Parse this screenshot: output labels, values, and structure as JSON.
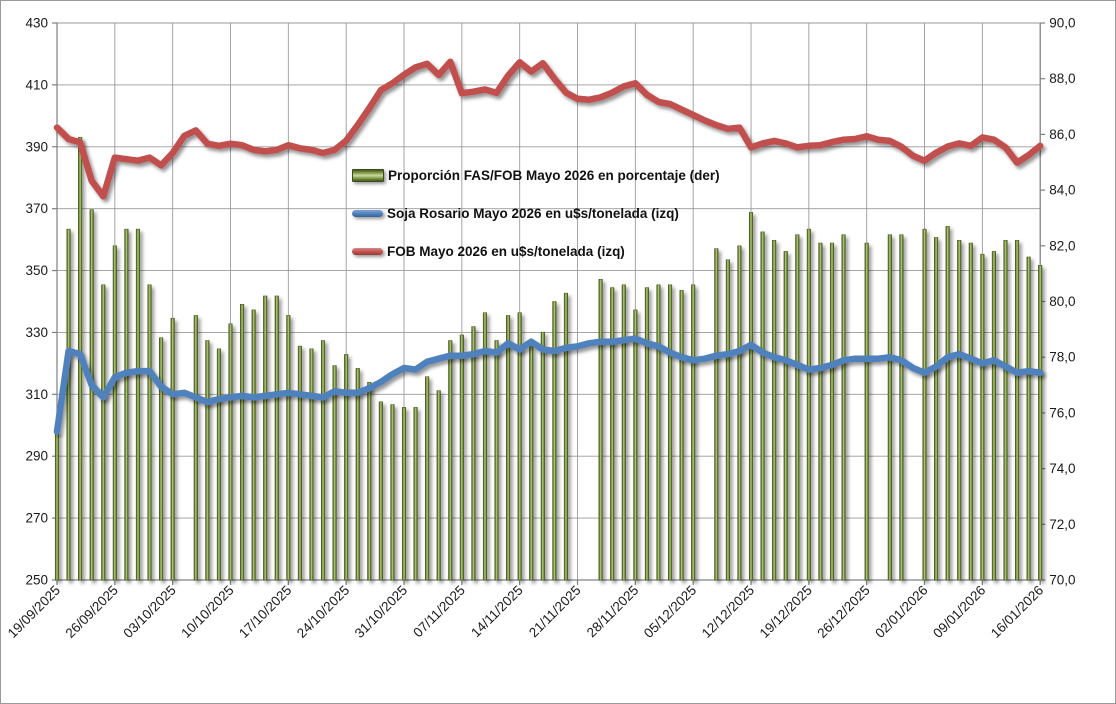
{
  "window": {
    "background": "#FFFFFF",
    "border_color": "#9A9A9A"
  },
  "chart_data": {
    "type": "combo",
    "title": "",
    "xlabel": "",
    "ylabel_left": "",
    "ylabel_right": "",
    "grid": true,
    "legend_position": "inside-upper-center",
    "categories": [
      "19/09/2025",
      "22/09/2025",
      "23/09/2025",
      "24/09/2025",
      "25/09/2025",
      "26/09/2025",
      "29/09/2025",
      "30/09/2025",
      "01/10/2025",
      "02/10/2025",
      "03/10/2025",
      "06/10/2025",
      "07/10/2025",
      "08/10/2025",
      "09/10/2025",
      "10/10/2025",
      "13/10/2025",
      "14/10/2025",
      "15/10/2025",
      "16/10/2025",
      "17/10/2025",
      "20/10/2025",
      "21/10/2025",
      "22/10/2025",
      "23/10/2025",
      "24/10/2025",
      "27/10/2025",
      "28/10/2025",
      "29/10/2025",
      "30/10/2025",
      "31/10/2025",
      "03/11/2025",
      "04/11/2025",
      "05/11/2025",
      "06/11/2025",
      "07/11/2025",
      "10/11/2025",
      "11/11/2025",
      "12/11/2025",
      "13/11/2025",
      "14/11/2025",
      "17/11/2025",
      "18/11/2025",
      "19/11/2025",
      "20/11/2025",
      "21/11/2025",
      "24/11/2025",
      "25/11/2025",
      "26/11/2025",
      "27/11/2025",
      "28/11/2025",
      "01/12/2025",
      "02/12/2025",
      "03/12/2025",
      "04/12/2025",
      "05/12/2025",
      "08/12/2025",
      "09/12/2025",
      "10/12/2025",
      "11/12/2025",
      "12/12/2025",
      "15/12/2025",
      "16/12/2025",
      "17/12/2025",
      "18/12/2025",
      "19/12/2025",
      "22/12/2025",
      "23/12/2025",
      "24/12/2025",
      "25/12/2025",
      "26/12/2025",
      "29/12/2025",
      "30/12/2025",
      "31/12/2025",
      "01/01/2026",
      "02/01/2026",
      "05/01/2026",
      "06/01/2026",
      "07/01/2026",
      "08/01/2026",
      "09/01/2026",
      "12/01/2026",
      "13/01/2026",
      "14/01/2026",
      "15/01/2026",
      "16/01/2026"
    ],
    "x_tick_labels": [
      "19/09/2025",
      "26/09/2025",
      "03/10/2025",
      "10/10/2025",
      "17/10/2025",
      "24/10/2025",
      "31/10/2025",
      "07/11/2025",
      "14/11/2025",
      "21/11/2025",
      "28/11/2025",
      "05/12/2025",
      "12/12/2025",
      "19/12/2025",
      "26/12/2025",
      "02/01/2026",
      "09/01/2026",
      "16/01/2026"
    ],
    "axes": {
      "left": {
        "min": 250,
        "max": 430,
        "step": 20,
        "tick_labels": [
          "250",
          "270",
          "290",
          "310",
          "330",
          "350",
          "370",
          "390",
          "410",
          "430"
        ]
      },
      "right": {
        "min": 70,
        "max": 90,
        "step": 2,
        "tick_labels": [
          "70,0",
          "72,0",
          "74,0",
          "76,0",
          "78,0",
          "80,0",
          "82,0",
          "84,0",
          "86,0",
          "88,0",
          "90,0"
        ]
      }
    },
    "series": [
      {
        "name": "Proporción FAS/FOB Mayo 2026 en porcentaje (der)",
        "type": "bar",
        "axis": "right",
        "color": "#77933C",
        "values": [
          75.3,
          82.6,
          85.9,
          83.3,
          80.6,
          82.0,
          82.6,
          82.6,
          80.6,
          78.7,
          79.4,
          null,
          79.5,
          78.6,
          78.3,
          79.2,
          79.9,
          79.7,
          80.2,
          80.2,
          79.5,
          78.4,
          78.3,
          78.6,
          77.7,
          78.1,
          77.6,
          77.1,
          76.4,
          76.3,
          76.2,
          76.2,
          77.3,
          76.8,
          78.6,
          78.8,
          79.1,
          79.6,
          78.6,
          79.5,
          79.6,
          78.4,
          78.9,
          80.0,
          80.3,
          null,
          null,
          80.8,
          80.5,
          80.6,
          79.7,
          80.5,
          80.6,
          80.6,
          80.4,
          80.6,
          null,
          81.9,
          81.5,
          82.0,
          83.2,
          82.5,
          82.2,
          81.8,
          82.4,
          82.6,
          82.1,
          82.1,
          82.4,
          null,
          82.1,
          null,
          82.4,
          82.4,
          null,
          82.6,
          82.3,
          82.7,
          82.2,
          82.1,
          81.7,
          81.8,
          82.2,
          82.2,
          81.6,
          81.3
        ]
      },
      {
        "name": "Soja Rosario Mayo 2026 en u$s/tonelada (izq)",
        "type": "line",
        "axis": "left",
        "color": "#4F81BD",
        "values": [
          298,
          324,
          323,
          313,
          309,
          315.5,
          317,
          317.5,
          317.5,
          312.5,
          310,
          310.5,
          309,
          307.5,
          308.5,
          309,
          309.5,
          309,
          309.5,
          310,
          310.5,
          310,
          309.5,
          309,
          311,
          310.5,
          310.5,
          312,
          314,
          316.5,
          318.5,
          318,
          320.5,
          321.5,
          322.5,
          322.5,
          323,
          324,
          323.5,
          326.5,
          324.5,
          327,
          324.5,
          324,
          325,
          325.5,
          326.5,
          327,
          327,
          327.5,
          328,
          326.5,
          325.5,
          323.5,
          322,
          321,
          321.5,
          322.5,
          323,
          324,
          326,
          323.5,
          322,
          321,
          319.5,
          318,
          318.5,
          319.5,
          321,
          321.5,
          321.5,
          321.5,
          322,
          321,
          318.5,
          317,
          319,
          322,
          323,
          321.5,
          320,
          321,
          319,
          317,
          317.5,
          317
        ]
      },
      {
        "name": "FOB Mayo 2026 en u$s/tonelada (izq)",
        "type": "line",
        "axis": "left",
        "color": "#C0504D",
        "values": [
          396.2,
          392.5,
          391.4,
          379,
          374,
          386.5,
          386,
          385.5,
          386.5,
          384,
          388,
          393.5,
          395.3,
          391,
          390.3,
          391,
          390.5,
          389,
          388.5,
          389,
          390.5,
          389.5,
          389,
          388,
          389,
          392,
          397,
          402.5,
          408.3,
          410.5,
          413.3,
          415.7,
          416.8,
          413.2,
          417.5,
          407.3,
          407.8,
          408.5,
          407.4,
          413,
          417.3,
          414.3,
          417,
          412,
          407.5,
          405.5,
          405.2,
          406,
          407.5,
          409.5,
          410.5,
          406.8,
          404.5,
          403.8,
          402,
          400.3,
          398.5,
          397,
          395.8,
          396.2,
          389.8,
          391.1,
          391.9,
          391.1,
          389.8,
          390.3,
          390.5,
          391.5,
          392.3,
          392.5,
          393.4,
          392.3,
          391.9,
          390,
          387.1,
          385.5,
          388.1,
          390.1,
          391.1,
          390.3,
          393,
          392.3,
          389.8,
          384.9,
          387.3,
          390.3
        ]
      }
    ]
  },
  "legend": {
    "items": [
      {
        "label": "Proporción FAS/FOB Mayo 2026 en porcentaje (der)",
        "marker": "bar-marker",
        "color": "#77933C"
      },
      {
        "label": "Soja Rosario Mayo 2026 en u$s/tonelada (izq)",
        "marker": "line-marker",
        "color": "#4F81BD"
      },
      {
        "label": "FOB Mayo 2026 en u$s/tonelada (izq)",
        "marker": "line-marker",
        "color": "#C0504D"
      }
    ]
  }
}
